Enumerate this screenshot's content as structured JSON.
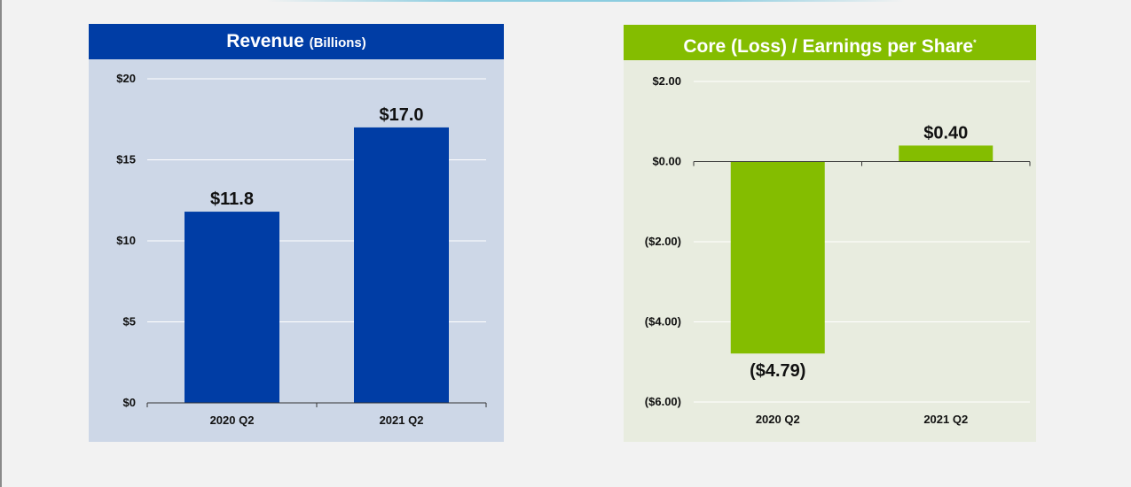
{
  "colors": {
    "revenue_header": "#003da5",
    "revenue_bg": "#cdd7e7",
    "revenue_bar": "#003da5",
    "eps_header": "#84bd00",
    "eps_bg": "#e8ecdf",
    "eps_bar": "#84bd00"
  },
  "revenue": {
    "title": "Revenue",
    "subtitle": "(Billions)"
  },
  "eps": {
    "title": "Core (Loss) / Earnings per Share",
    "footnote_mark": "*"
  },
  "chart_data": [
    {
      "type": "bar",
      "title": "Revenue (Billions)",
      "categories": [
        "2020 Q2",
        "2021 Q2"
      ],
      "values": [
        11.8,
        17.0
      ],
      "value_labels": [
        "$11.8",
        "$17.0"
      ],
      "ylim": [
        0,
        20
      ],
      "yticks": [
        0,
        5,
        10,
        15,
        20
      ],
      "ytick_labels": [
        "$0",
        "$5",
        "$10",
        "$15",
        "$20"
      ],
      "xlabel": "",
      "ylabel": "",
      "grid": true
    },
    {
      "type": "bar",
      "title": "Core (Loss) / Earnings per Share*",
      "categories": [
        "2020 Q2",
        "2021 Q2"
      ],
      "values": [
        -4.79,
        0.4
      ],
      "value_labels": [
        "($4.79)",
        "$0.40"
      ],
      "ylim": [
        -6,
        2
      ],
      "yticks": [
        2,
        0,
        -2,
        -4,
        -6
      ],
      "ytick_labels": [
        "$2.00",
        "$0.00",
        "($2.00)",
        "($4.00)",
        "($6.00)"
      ],
      "xlabel": "",
      "ylabel": "",
      "grid": true
    }
  ]
}
